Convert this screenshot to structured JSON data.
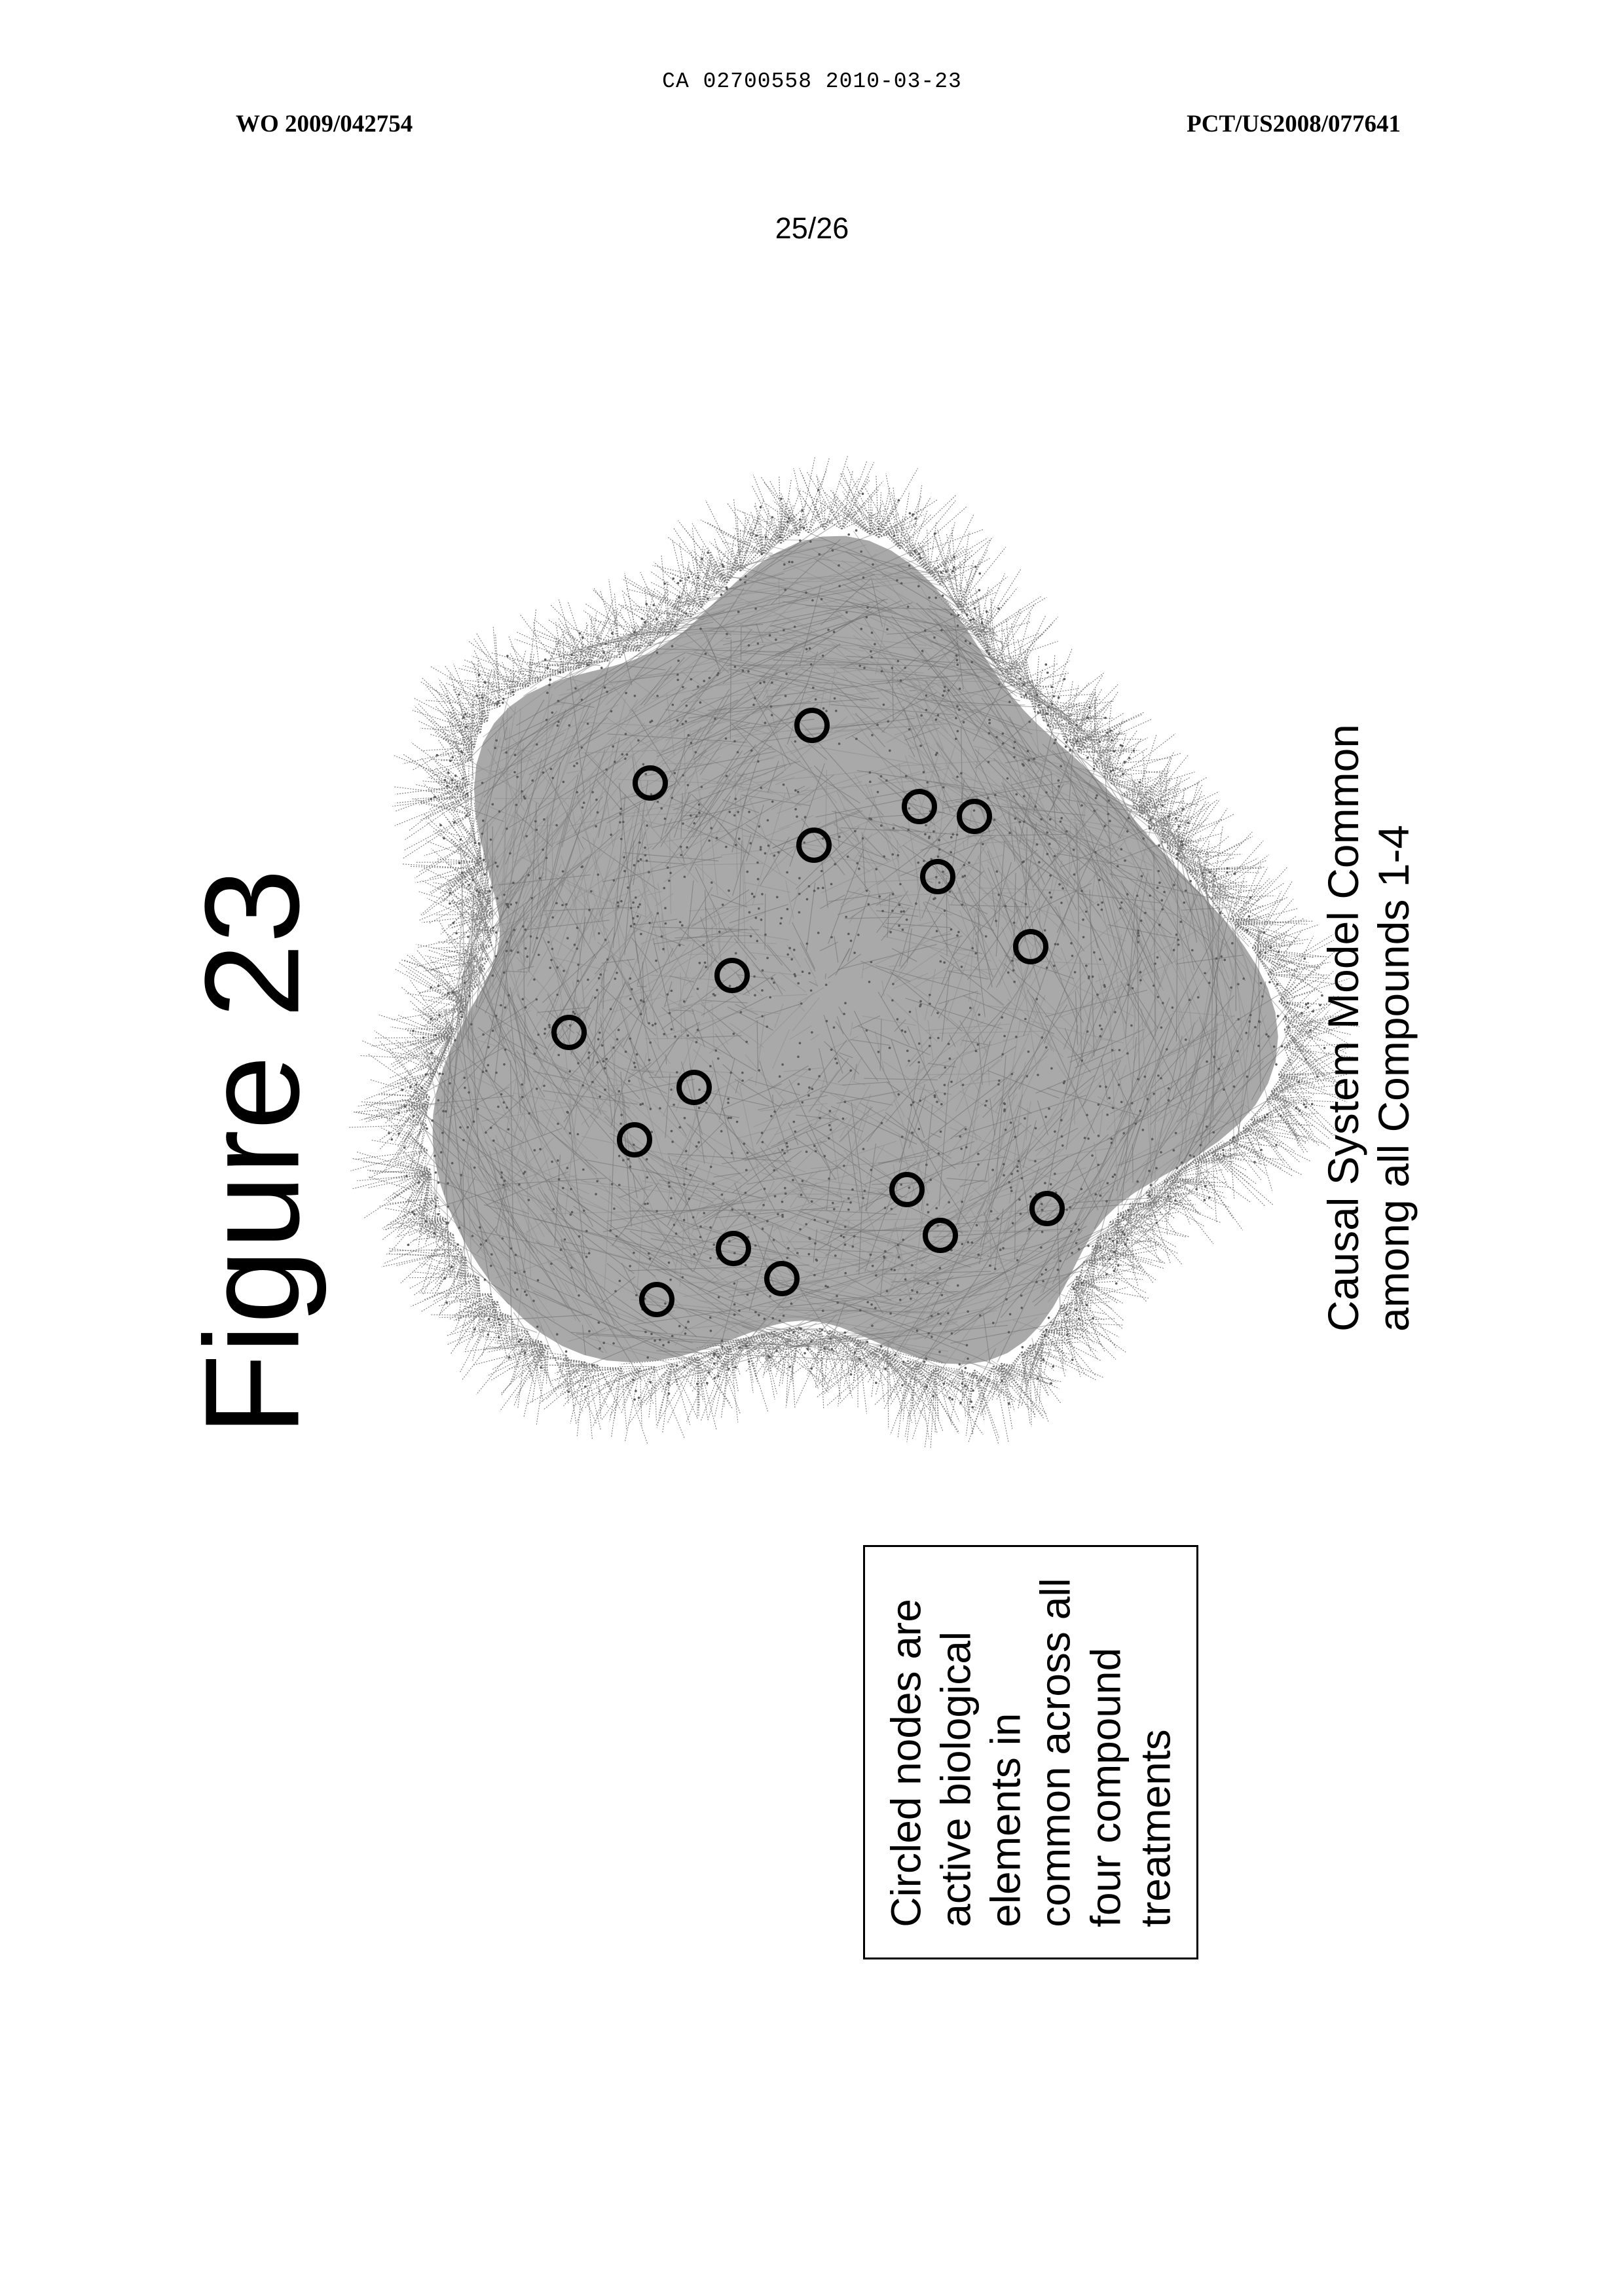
{
  "header": {
    "doc_id": "CA 02700558 2010-03-23",
    "pub_left": "WO 2009/042754",
    "pub_right": "PCT/US2008/077641",
    "page_number": "25/26"
  },
  "figure": {
    "title": "Figure 23",
    "caption_lines": [
      "Causal System Model Common",
      "among all Compounds 1-4"
    ],
    "legend_lines": [
      "Circled nodes are",
      "active biological",
      "elements in",
      "common across all",
      "four compound",
      "treatments"
    ]
  },
  "network": {
    "cloud_color": "#8c8c8c",
    "circle_color": "#000000",
    "highlighted_node_count": 18
  }
}
